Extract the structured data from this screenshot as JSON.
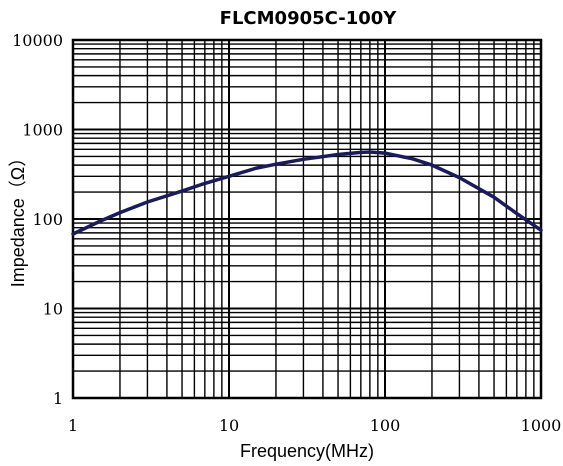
{
  "chart_data": {
    "type": "line",
    "title": "FLCM0905C-100Y",
    "xlabel": "Frequency(MHz)",
    "ylabel": "Impedance（Ω）",
    "x_scale": "log",
    "y_scale": "log",
    "xlim": [
      1,
      1000
    ],
    "ylim": [
      1,
      10000
    ],
    "x_ticks": [
      "1",
      "10",
      "100",
      "1000"
    ],
    "y_ticks": [
      "1",
      "10",
      "100",
      "1000",
      "10000"
    ],
    "grid": true,
    "line_color": "#1a1a5e",
    "series": [
      {
        "x": [
          1,
          1.5,
          2,
          3,
          5,
          7,
          10,
          15,
          20,
          30,
          50,
          70,
          80,
          100,
          150,
          200,
          300,
          500,
          700,
          1000
        ],
        "y": [
          68,
          95,
          118,
          155,
          205,
          250,
          300,
          370,
          410,
          465,
          525,
          555,
          560,
          545,
          470,
          400,
          290,
          175,
          115,
          75
        ]
      }
    ]
  }
}
